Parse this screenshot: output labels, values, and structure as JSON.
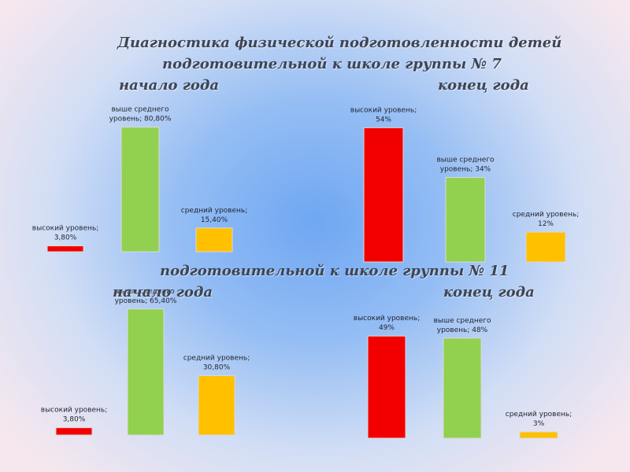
{
  "title_line1": "Диагностика физической подготовленности детей",
  "title_line2": "подготовительной к школе  группы № 7",
  "group7_start_label": "начало года",
  "group7_end_label": "конец года",
  "group11_title": "подготовительной к школе  группы № 11",
  "group11_start_label": "начало года",
  "group11_end_label": "конец года",
  "colors": {
    "high": "#f20000",
    "above_average": "#92d050",
    "average": "#ffc000"
  },
  "chart_data": [
    {
      "type": "bar",
      "panel": "group7-start",
      "ylim": [
        0,
        100
      ],
      "series": [
        {
          "key": "high",
          "label_lines": [
            "высокий уровень;",
            "3,80%"
          ],
          "value": 3.8
        },
        {
          "key": "above_average",
          "label_lines": [
            "выше среднего",
            "уровень; 80,80%"
          ],
          "value": 80.8
        },
        {
          "key": "average",
          "label_lines": [
            "средний уровень;",
            "15,40%"
          ],
          "value": 15.4
        }
      ]
    },
    {
      "type": "bar",
      "panel": "group7-end",
      "ylim": [
        0,
        100
      ],
      "series": [
        {
          "key": "high",
          "label_lines": [
            "высокий уровень;",
            "54%"
          ],
          "value": 54
        },
        {
          "key": "above_average",
          "label_lines": [
            "выше среднего",
            "уровень; 34%"
          ],
          "value": 34
        },
        {
          "key": "average",
          "label_lines": [
            "средний уровень;",
            "12%"
          ],
          "value": 12
        }
      ]
    },
    {
      "type": "bar",
      "panel": "group11-start",
      "ylim": [
        0,
        100
      ],
      "series": [
        {
          "key": "high",
          "label_lines": [
            "высокий уровень;",
            "3,80%"
          ],
          "value": 3.8
        },
        {
          "key": "above_average",
          "label_lines": [
            "выше среднего",
            "уровень; 65,40%"
          ],
          "value": 65.4
        },
        {
          "key": "average",
          "label_lines": [
            "средний уровень;",
            "30,80%"
          ],
          "value": 30.8
        }
      ]
    },
    {
      "type": "bar",
      "panel": "group11-end",
      "ylim": [
        0,
        100
      ],
      "series": [
        {
          "key": "high",
          "label_lines": [
            "высокий уровень;",
            "49%"
          ],
          "value": 49
        },
        {
          "key": "above_average",
          "label_lines": [
            "выше среднего",
            "уровень; 48%"
          ],
          "value": 48
        },
        {
          "key": "average",
          "label_lines": [
            "средний уровень;",
            "3%"
          ],
          "value": 3
        }
      ]
    }
  ]
}
